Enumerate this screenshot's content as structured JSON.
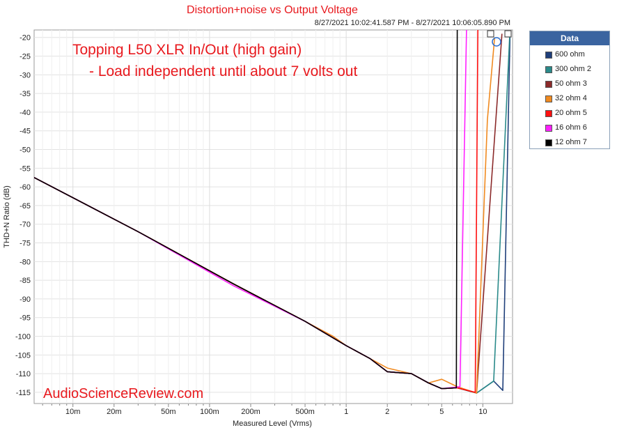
{
  "chart_data": {
    "type": "line",
    "title": "Distortion+noise vs Output Voltage",
    "subtitle": "8/27/2021 10:02:41.587 PM - 8/27/2021 10:06:05.890 PM",
    "xlabel": "Measured Level (Vrms)",
    "ylabel": "THD+N Ratio (dB)",
    "xscale": "log",
    "xlim": [
      0.0052,
      16.5
    ],
    "ylim": [
      -118,
      -18
    ],
    "yticks": [
      "-20",
      "-25",
      "-30",
      "-35",
      "-40",
      "-45",
      "-50",
      "-55",
      "-60",
      "-65",
      "-70",
      "-75",
      "-80",
      "-85",
      "-90",
      "-95",
      "-100",
      "-105",
      "-110",
      "-115"
    ],
    "xticks": [
      {
        "value": 0.01,
        "label": "10m"
      },
      {
        "value": 0.02,
        "label": "20m"
      },
      {
        "value": 0.05,
        "label": "50m"
      },
      {
        "value": 0.1,
        "label": "100m"
      },
      {
        "value": 0.2,
        "label": "200m"
      },
      {
        "value": 0.5,
        "label": "500m"
      },
      {
        "value": 1,
        "label": "1"
      },
      {
        "value": 2,
        "label": "2"
      },
      {
        "value": 5,
        "label": "5"
      },
      {
        "value": 10,
        "label": "10"
      }
    ],
    "annotations": {
      "line1": "Topping L50 XLR In/Out (high gain)",
      "line2": "- Load independent until about 7 volts out",
      "watermark": "AudioScienceReview.com"
    },
    "legend_title": "Data",
    "legend_position": "right",
    "series": [
      {
        "name": "600 ohm",
        "suffix": "",
        "color": "#1f3f7a",
        "x": [
          0.0052,
          0.03,
          0.15,
          0.5,
          1.0,
          1.5,
          2.0,
          3.0,
          4.0,
          5.0,
          6.5,
          9.0,
          12.0,
          14.0,
          15.8
        ],
        "y": [
          -57.5,
          -72,
          -86,
          -96,
          -102.5,
          -106,
          -109.5,
          -110,
          -112.5,
          -114,
          -113.8,
          -115.2,
          -112,
          -114.5,
          -20
        ]
      },
      {
        "name": "300 ohm",
        "suffix": "2",
        "color": "#2a8a8a",
        "x": [
          0.0052,
          0.03,
          0.15,
          0.5,
          1.0,
          1.5,
          2.0,
          3.0,
          4.0,
          5.0,
          6.5,
          9.0,
          12.0,
          15.7
        ],
        "y": [
          -57.5,
          -72,
          -86,
          -96,
          -102.5,
          -106,
          -109.5,
          -110,
          -112.5,
          -114,
          -113.8,
          -115.2,
          -112,
          -20
        ]
      },
      {
        "name": "50 ohm",
        "suffix": "3",
        "color": "#8b2a2a",
        "x": [
          0.0052,
          0.03,
          0.15,
          0.5,
          1.0,
          1.5,
          2.0,
          3.0,
          4.0,
          5.0,
          6.5,
          9.0,
          11.5,
          13.8
        ],
        "y": [
          -57.5,
          -72,
          -86,
          -96,
          -102.5,
          -106,
          -109.5,
          -110,
          -112.5,
          -114,
          -113.8,
          -115.2,
          -60,
          -19
        ]
      },
      {
        "name": "32 ohm",
        "suffix": "4",
        "color": "#f08a20",
        "x": [
          0.0052,
          0.03,
          0.15,
          0.5,
          0.8,
          1.0,
          1.5,
          2.0,
          3.0,
          4.0,
          5.0,
          6.5,
          9.0,
          10.8,
          12.2
        ],
        "y": [
          -57.5,
          -72,
          -86,
          -96,
          -100,
          -102.5,
          -106,
          -108.5,
          -110,
          -112.5,
          -111.5,
          -113.5,
          -115.2,
          -42,
          -20
        ]
      },
      {
        "name": "20 ohm",
        "suffix": "5",
        "color": "#ff1010",
        "x": [
          0.0052,
          0.03,
          0.15,
          0.5,
          1.0,
          1.5,
          2.0,
          3.0,
          4.0,
          5.0,
          6.5,
          8.8,
          9.2
        ],
        "y": [
          -57.5,
          -72,
          -86,
          -96,
          -102.5,
          -106,
          -109.5,
          -110,
          -112.5,
          -114,
          -113.8,
          -115,
          -18
        ]
      },
      {
        "name": "16 ohm",
        "suffix": "6",
        "color": "#ff20ff",
        "x": [
          0.0052,
          0.03,
          0.15,
          0.5,
          1.0,
          1.5,
          2.0,
          3.0,
          4.0,
          5.0,
          6.8,
          7.6
        ],
        "y": [
          -57.5,
          -72,
          -86.5,
          -96,
          -102.5,
          -106,
          -109.5,
          -110,
          -112.5,
          -114,
          -113.5,
          -18
        ]
      },
      {
        "name": "12 ohm",
        "suffix": "7",
        "color": "#000000",
        "x": [
          0.0052,
          0.03,
          0.15,
          0.5,
          1.0,
          1.5,
          2.0,
          3.0,
          4.0,
          5.0,
          6.4,
          6.5
        ],
        "y": [
          -57.5,
          -72,
          -86,
          -96,
          -102.5,
          -106,
          -109.5,
          -110,
          -112.5,
          -114,
          -113.8,
          -18
        ]
      }
    ]
  }
}
